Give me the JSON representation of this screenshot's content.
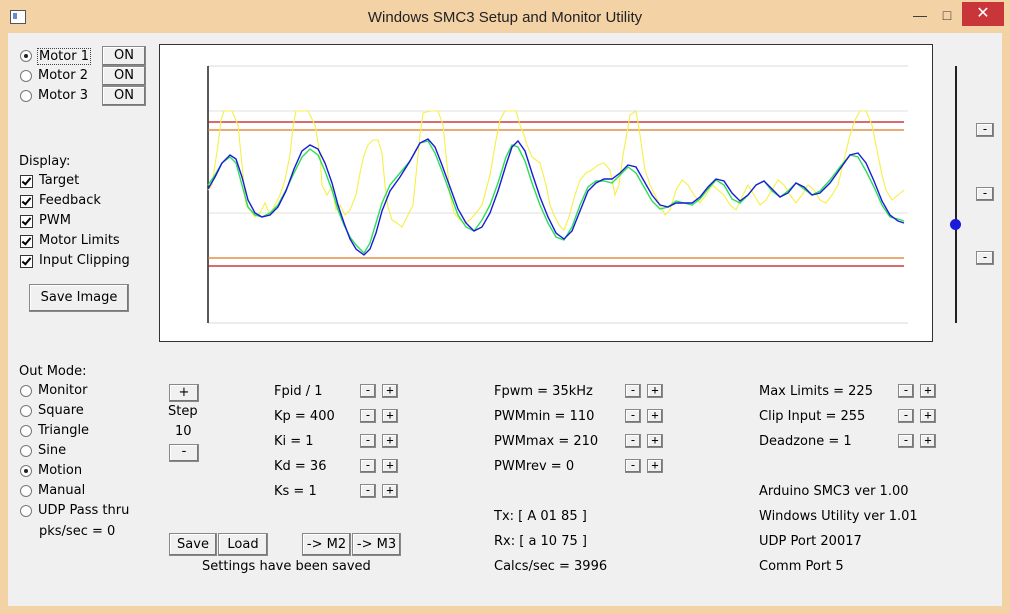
{
  "window": {
    "title": "Windows SMC3 Setup and Monitor Utility",
    "minimize": "—",
    "maximize": "□",
    "close": "✕"
  },
  "motors": [
    {
      "label": "Motor 1",
      "button": "ON",
      "selected": true
    },
    {
      "label": "Motor 2",
      "button": "ON",
      "selected": false
    },
    {
      "label": "Motor 3",
      "button": "ON",
      "selected": false
    }
  ],
  "display": {
    "heading": "Display:",
    "options": [
      {
        "label": "Target",
        "checked": true
      },
      {
        "label": "Feedback",
        "checked": true
      },
      {
        "label": "PWM",
        "checked": true
      },
      {
        "label": "Motor Limits",
        "checked": true
      },
      {
        "label": "Input Clipping",
        "checked": true
      }
    ],
    "save_image": "Save Image"
  },
  "out_mode": {
    "heading": "Out Mode:",
    "options": [
      {
        "label": "Monitor",
        "selected": false
      },
      {
        "label": "Square",
        "selected": false
      },
      {
        "label": "Triangle",
        "selected": false
      },
      {
        "label": "Sine",
        "selected": false
      },
      {
        "label": "Motion",
        "selected": true
      },
      {
        "label": "Manual",
        "selected": false
      },
      {
        "label": "UDP Pass thru",
        "selected": false
      }
    ],
    "pks_sec": "pks/sec = 0"
  },
  "step": {
    "plus": "+",
    "label": "Step",
    "value": "10",
    "minus": "-"
  },
  "pid": [
    {
      "label": "Fpid / 1"
    },
    {
      "label": "Kp = 400"
    },
    {
      "label": "Ki = 1"
    },
    {
      "label": "Kd = 36"
    },
    {
      "label": "Ks = 1"
    }
  ],
  "pwm": [
    {
      "label": "Fpwm = 35kHz"
    },
    {
      "label": "PWMmin = 110"
    },
    {
      "label": "PWMmax = 210"
    },
    {
      "label": "PWMrev = 0"
    }
  ],
  "limits": [
    {
      "label": "Max Limits = 225"
    },
    {
      "label": "Clip Input = 255"
    },
    {
      "label": "Deadzone = 1"
    }
  ],
  "minus": "-",
  "plus": "+",
  "comm": {
    "tx": "Tx: [ A 01 85 ]",
    "rx": "Rx: [ a 10 75 ]",
    "calcs": "Calcs/sec = 3996"
  },
  "info": {
    "arduino": "Arduino SMC3 ver 1.00",
    "utility": "Windows Utility ver 1.01",
    "udp": "UDP Port 20017",
    "comm": "Comm Port 5"
  },
  "buttons": {
    "save": "Save",
    "load": "Load",
    "to_m2": "-> M2",
    "to_m3": "-> M3"
  },
  "status": "Settings have been saved",
  "right_buttons": [
    "-",
    "-",
    "-"
  ],
  "colors": {
    "target": "#2adf55",
    "feedback": "#1a1ad8",
    "pwm": "#f5f046",
    "motor_limits": "#c0141a",
    "input_clipping": "#e07820",
    "slider_thumb": "#1a1ad8"
  },
  "slider_level": 0.6
}
